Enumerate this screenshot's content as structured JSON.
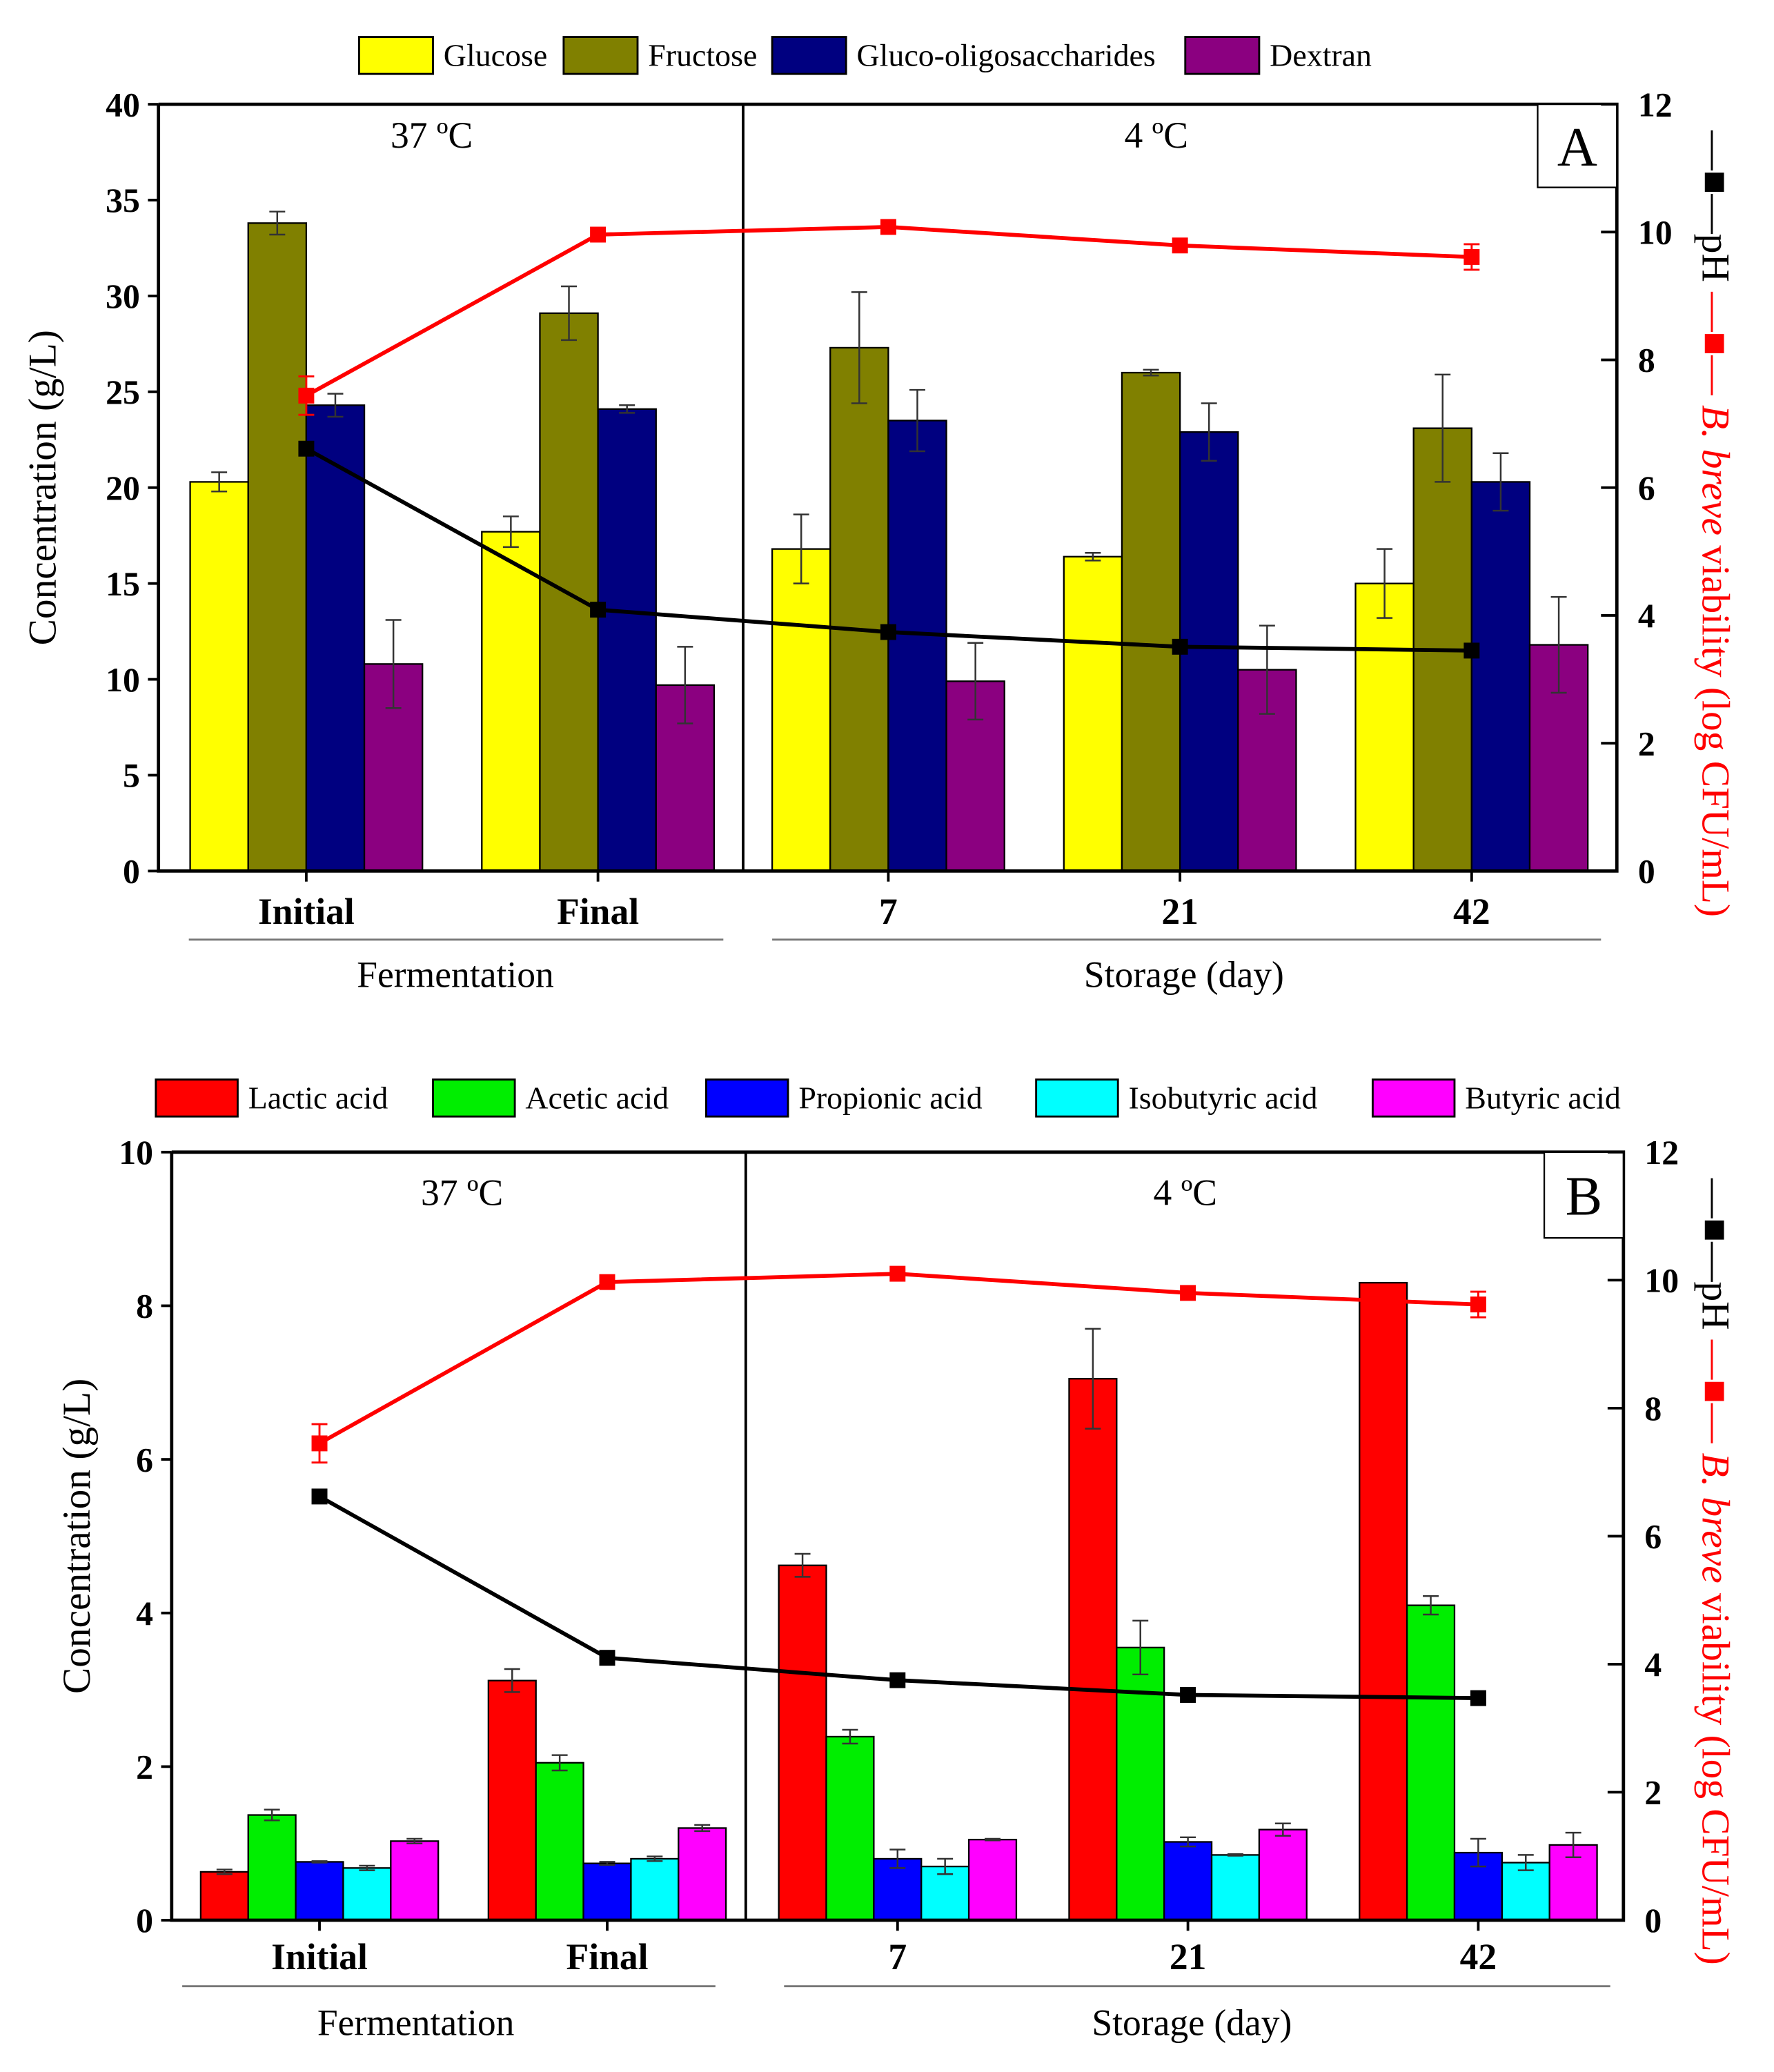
{
  "chart_data": [
    {
      "panel_label": "A",
      "type": "bar",
      "categories": [
        "Initial",
        "Final",
        "7",
        "21",
        "42"
      ],
      "category_groups": [
        {
          "label": "Fermentation",
          "categories": [
            "Initial",
            "Final"
          ],
          "temperature": "37 ºC"
        },
        {
          "label": "Storage (day)",
          "categories": [
            "7",
            "21",
            "42"
          ],
          "temperature": "4 ºC"
        }
      ],
      "ylabel": "Concentration (g/L)",
      "ylim": [
        0,
        40
      ],
      "yticks": [
        0,
        5,
        10,
        15,
        20,
        25,
        30,
        35,
        40
      ],
      "y2label_ph": "pH",
      "y2label_viability_italic": "B. breve",
      "y2label_viability_rest": " viability (log CFU/mL)",
      "y2lim": [
        0,
        12
      ],
      "y2ticks": [
        0,
        2,
        4,
        6,
        8,
        10,
        12
      ],
      "legend_position": "top",
      "series": [
        {
          "name": "Glucose",
          "color": "#ffff00",
          "values": [
            20.3,
            17.7,
            16.8,
            16.4,
            15.0
          ],
          "errors": [
            0.5,
            0.8,
            1.8,
            0.2,
            1.8
          ]
        },
        {
          "name": "Fructose",
          "color": "#808000",
          "values": [
            33.8,
            29.1,
            27.3,
            26.0,
            23.1
          ],
          "errors": [
            0.6,
            1.4,
            2.9,
            0.15,
            2.8
          ]
        },
        {
          "name": "Gluco-oligosaccharides",
          "color": "#000080",
          "values": [
            24.3,
            24.1,
            23.5,
            22.9,
            20.3
          ],
          "errors": [
            0.6,
            0.2,
            1.6,
            1.5,
            1.5
          ]
        },
        {
          "name": "Dextran",
          "color": "#8b0080",
          "values": [
            10.8,
            9.7,
            9.9,
            10.5,
            11.8
          ],
          "errors": [
            2.3,
            2.0,
            2.0,
            2.3,
            2.5
          ]
        }
      ],
      "lines": [
        {
          "name": "pH",
          "axis": "right",
          "color": "#000000",
          "values": [
            6.61,
            4.09,
            3.74,
            3.51,
            3.45
          ],
          "errors": [
            0,
            0,
            0,
            0,
            0
          ]
        },
        {
          "name": "B. breve viability",
          "axis": "right",
          "color": "#ff0000",
          "values": [
            7.44,
            9.96,
            10.08,
            9.79,
            9.61
          ],
          "errors": [
            0.3,
            0,
            0,
            0,
            0.2
          ]
        }
      ]
    },
    {
      "panel_label": "B",
      "type": "bar",
      "categories": [
        "Initial",
        "Final",
        "7",
        "21",
        "42"
      ],
      "category_groups": [
        {
          "label": "Fermentation",
          "categories": [
            "Initial",
            "Final"
          ],
          "temperature": "37 ºC"
        },
        {
          "label": "Storage (day)",
          "categories": [
            "7",
            "21",
            "42"
          ],
          "temperature": "4 ºC"
        }
      ],
      "ylabel": "Concentration (g/L)",
      "ylim": [
        0,
        10
      ],
      "yticks": [
        0,
        2,
        4,
        6,
        8,
        10
      ],
      "y2label_ph": "pH",
      "y2label_viability_italic": "B. breve",
      "y2label_viability_rest": " viability (log CFU/mL)",
      "y2lim": [
        0,
        12
      ],
      "y2ticks": [
        0,
        2,
        4,
        6,
        8,
        10,
        12
      ],
      "legend_position": "top",
      "series": [
        {
          "name": "Lactic acid",
          "color": "#ff0000",
          "values": [
            0.63,
            3.12,
            4.62,
            7.05,
            8.3
          ],
          "errors": [
            0.03,
            0.15,
            0.15,
            0.65,
            0
          ]
        },
        {
          "name": "Acetic acid",
          "color": "#00ee00",
          "values": [
            1.37,
            2.05,
            2.39,
            3.55,
            4.1
          ],
          "errors": [
            0.07,
            0.1,
            0.09,
            0.35,
            0.12
          ]
        },
        {
          "name": "Propionic acid",
          "color": "#0000ff",
          "values": [
            0.76,
            0.74,
            0.8,
            1.02,
            0.88
          ],
          "errors": [
            0.01,
            0.02,
            0.12,
            0.06,
            0.18
          ]
        },
        {
          "name": "Isobutyric acid",
          "color": "#00ffff",
          "values": [
            0.68,
            0.8,
            0.7,
            0.85,
            0.75
          ],
          "errors": [
            0.03,
            0.03,
            0.1,
            0.01,
            0.1
          ]
        },
        {
          "name": "Butyric acid",
          "color": "#ff00ff",
          "values": [
            1.03,
            1.2,
            1.05,
            1.18,
            0.98
          ],
          "errors": [
            0.03,
            0.04,
            0.01,
            0.08,
            0.16
          ]
        }
      ],
      "lines": [
        {
          "name": "pH",
          "axis": "right",
          "color": "#000000",
          "values": [
            6.62,
            4.1,
            3.75,
            3.52,
            3.47
          ],
          "errors": [
            0,
            0,
            0,
            0,
            0
          ]
        },
        {
          "name": "B. breve viability",
          "axis": "right",
          "color": "#ff0000",
          "values": [
            7.45,
            9.97,
            10.1,
            9.8,
            9.62
          ],
          "errors": [
            0.3,
            0,
            0,
            0,
            0.2
          ]
        }
      ]
    }
  ]
}
